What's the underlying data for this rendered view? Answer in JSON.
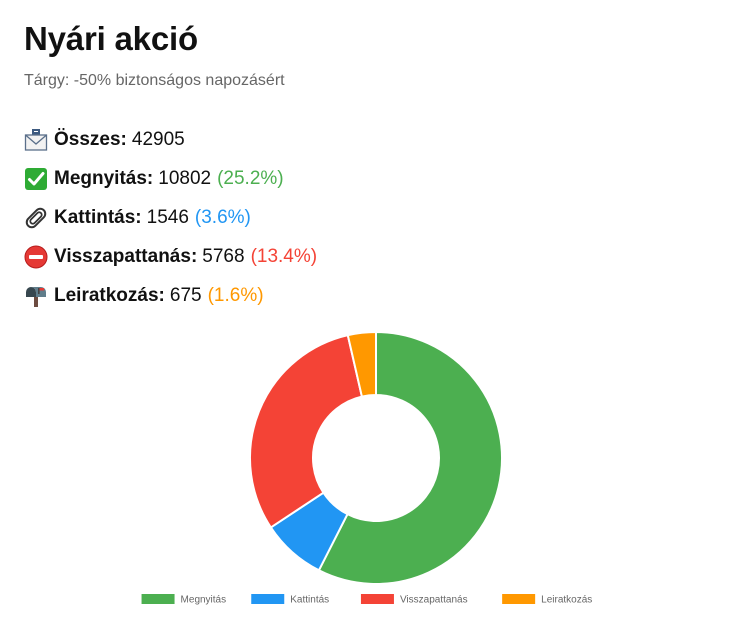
{
  "campaign": {
    "title": "Nyári akció",
    "subject": "Tárgy: -50% biztonságos napozásért"
  },
  "stats": [
    {
      "label": "Összes",
      "value": "42905",
      "percent": "",
      "icon": "envelope-icon",
      "color": "#111111"
    },
    {
      "label": "Megnyitás",
      "value": "10802",
      "percent": "(25.2%)",
      "icon": "checkmark-icon",
      "color": "#4caf50"
    },
    {
      "label": "Kattintás",
      "value": "1546",
      "percent": "(3.6%)",
      "icon": "paperclip-icon",
      "color": "#2196f3"
    },
    {
      "label": "Visszapattanás",
      "value": "5768",
      "percent": "(13.4%)",
      "icon": "no-entry-icon",
      "color": "#f44336"
    },
    {
      "label": "Leiratkozás",
      "value": "675",
      "percent": "(1.6%)",
      "icon": "mailbox-icon",
      "color": "#ff9800"
    }
  ],
  "chart_data": {
    "type": "doughnut",
    "categories": [
      "Megnyitás",
      "Kattintás",
      "Visszapattanás",
      "Leiratkozás"
    ],
    "values": [
      10802,
      1546,
      5768,
      675
    ],
    "colors": [
      "#4caf50",
      "#2196f3",
      "#f44336",
      "#ff9800"
    ],
    "legend": "bottom"
  }
}
